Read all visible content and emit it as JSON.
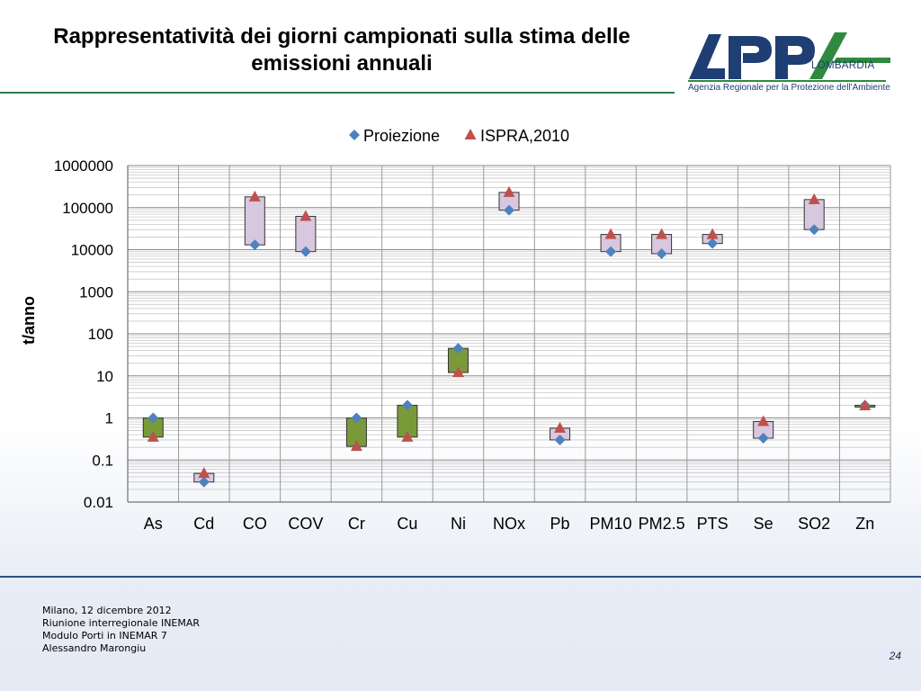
{
  "slide": {
    "title": "Rappresentatività dei giorni campionati sulla stima delle emissioni annuali",
    "page_number": "24",
    "footer": [
      "Milano, 12 dicembre 2012",
      "Riunione interregionale INEMAR",
      "Modulo Porti in INEMAR 7",
      "Alessandro Marongiu"
    ]
  },
  "logo": {
    "text": "ARPA",
    "region": "LOMBARDIA",
    "tagline": "Agenzia Regionale per la Protezione dell'Ambiente",
    "colors": {
      "blue": "#1f3e74",
      "green": "#2f8a3f"
    }
  },
  "chart_data": {
    "type": "floating-bar-with-markers",
    "ylabel": "t/anno",
    "scale": "log",
    "ylim": [
      0.01,
      1000000
    ],
    "y_ticks": [
      "0.01",
      "0.1",
      "1",
      "10",
      "100",
      "1000",
      "10000",
      "100000",
      "1000000"
    ],
    "grid": true,
    "legend_position": "top",
    "categories": [
      "As",
      "Cd",
      "CO",
      "COV",
      "Cr",
      "Cu",
      "Ni",
      "NOx",
      "Pb",
      "PM10",
      "PM2.5",
      "PTS",
      "Se",
      "SO2",
      "Zn"
    ],
    "series": [
      {
        "name": "Proiezione",
        "marker": "diamond",
        "color": "#4f81bd",
        "values": [
          1,
          0.03,
          13000,
          9000,
          1,
          2,
          45,
          87000,
          0.3,
          9000,
          8000,
          14000,
          0.33,
          30000,
          2
        ]
      },
      {
        "name": "ISPRA,2010",
        "marker": "triangle",
        "color": "#c0504d",
        "values": [
          0.35,
          0.048,
          180000,
          62000,
          0.21,
          0.35,
          12,
          230000,
          0.57,
          23000,
          23000,
          23000,
          0.82,
          155000,
          1.95
        ]
      }
    ],
    "box_colors": {
      "up": "#d7c8e0",
      "down": "#7a9a3a"
    }
  }
}
